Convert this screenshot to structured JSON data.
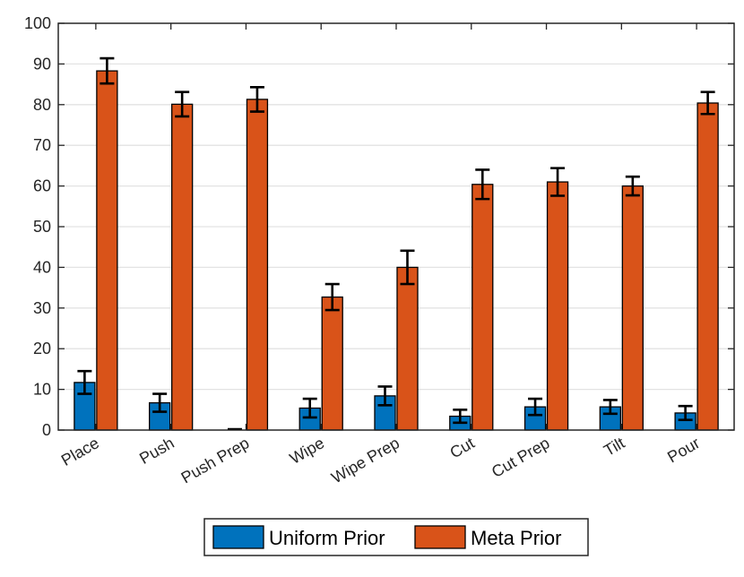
{
  "chart_data": {
    "type": "bar",
    "title": "",
    "xlabel": "",
    "ylabel": "",
    "ylim": [
      0,
      100
    ],
    "yticks": [
      0,
      10,
      20,
      30,
      40,
      50,
      60,
      70,
      80,
      90,
      100
    ],
    "grid": true,
    "legend_position": "bottom",
    "categories": [
      "Place",
      "Push",
      "Push Prep",
      "Wipe",
      "Wipe Prep",
      "Cut",
      "Cut Prep",
      "Tilt",
      "Pour"
    ],
    "series": [
      {
        "name": "Uniform Prior",
        "color": "#0072BD",
        "values": [
          11.7,
          6.7,
          0,
          5.4,
          8.4,
          3.4,
          5.7,
          5.7,
          4.2
        ],
        "errors": [
          2.8,
          2.2,
          0,
          2.3,
          2.3,
          1.6,
          2.0,
          1.7,
          1.7
        ]
      },
      {
        "name": "Meta Prior",
        "color": "#D95319",
        "values": [
          88.3,
          80.1,
          81.3,
          32.7,
          40.0,
          60.4,
          61.0,
          60.0,
          80.4
        ],
        "errors": [
          3.1,
          3.0,
          3.0,
          3.2,
          4.1,
          3.6,
          3.4,
          2.3,
          2.7
        ]
      }
    ]
  }
}
